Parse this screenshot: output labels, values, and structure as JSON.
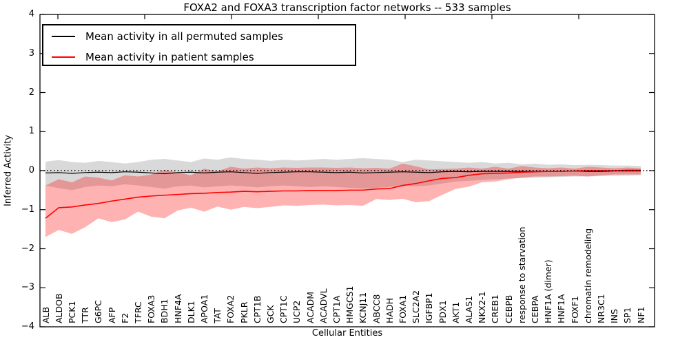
{
  "chart_data": {
    "type": "line",
    "title": "FOXA2 and FOXA3 transcription factor networks -- 533 samples",
    "xlabel": "Cellular Entities",
    "ylabel": "Inferred Activity",
    "ylim": [
      -4,
      4
    ],
    "ytick_values": [
      4,
      3,
      2,
      1,
      0,
      -1,
      -2,
      -3,
      -4
    ],
    "ytick_labels": [
      "4",
      "3",
      "2",
      "1",
      "0",
      "−1",
      "−2",
      "−3",
      "−4"
    ],
    "grid": false,
    "zero_reference_line": "dotted black at y=0",
    "legend_position": "upper left",
    "categories": [
      "ALB",
      "ALDOB",
      "PCK1",
      "TTR",
      "G6PC",
      "AFP",
      "F2",
      "TFRC",
      "FOXA3",
      "BDH1",
      "HNF4A",
      "DLK1",
      "APOA1",
      "TAT",
      "FOXA2",
      "PKLR",
      "CPT1B",
      "GCK",
      "CPT1C",
      "UCP2",
      "ACADM",
      "ACADVL",
      "CPT1A",
      "HMGCS1",
      "KCNJ11",
      "ABCC8",
      "HADH",
      "FOXA1",
      "SLC2A2",
      "IGFBP1",
      "PDX1",
      "AKT1",
      "ALAS1",
      "NKX2-1",
      "CREB1",
      "CEBPB",
      "response to starvation",
      "CEBPA",
      "HNF1A (dimer)",
      "HNF1A",
      "FOXF1",
      "chromatin remodeling",
      "NR3C1",
      "INS",
      "SP1",
      "NF1"
    ],
    "series": [
      {
        "name": "Mean activity in all permuted samples",
        "color": "#000000",
        "band_color": "rgba(0,0,0,0.15)",
        "values": [
          -0.06,
          -0.05,
          -0.07,
          -0.05,
          -0.04,
          -0.05,
          -0.03,
          -0.04,
          -0.06,
          -0.08,
          -0.05,
          -0.04,
          -0.06,
          -0.04,
          -0.03,
          -0.05,
          -0.07,
          -0.05,
          -0.04,
          -0.03,
          -0.03,
          -0.04,
          -0.05,
          -0.04,
          -0.06,
          -0.05,
          -0.04,
          -0.03,
          -0.04,
          -0.05,
          -0.03,
          -0.02,
          -0.03,
          -0.02,
          -0.02,
          -0.02,
          -0.02,
          -0.02,
          -0.02,
          -0.02,
          -0.01,
          -0.02,
          -0.02,
          -0.01,
          -0.01,
          -0.01
        ],
        "band_upper": [
          0.23,
          0.27,
          0.22,
          0.2,
          0.25,
          0.22,
          0.18,
          0.22,
          0.28,
          0.3,
          0.26,
          0.22,
          0.31,
          0.28,
          0.34,
          0.3,
          0.28,
          0.25,
          0.28,
          0.26,
          0.28,
          0.3,
          0.28,
          0.3,
          0.32,
          0.3,
          0.28,
          0.22,
          0.28,
          0.26,
          0.24,
          0.22,
          0.2,
          0.22,
          0.18,
          0.2,
          0.16,
          0.18,
          0.15,
          0.16,
          0.14,
          0.15,
          0.14,
          0.13,
          0.13,
          0.12
        ],
        "band_lower": [
          -0.38,
          -0.45,
          -0.5,
          -0.42,
          -0.38,
          -0.4,
          -0.35,
          -0.38,
          -0.42,
          -0.46,
          -0.4,
          -0.38,
          -0.43,
          -0.4,
          -0.38,
          -0.4,
          -0.43,
          -0.4,
          -0.38,
          -0.4,
          -0.42,
          -0.4,
          -0.42,
          -0.44,
          -0.46,
          -0.44,
          -0.42,
          -0.38,
          -0.4,
          -0.38,
          -0.33,
          -0.28,
          -0.26,
          -0.24,
          -0.22,
          -0.2,
          -0.19,
          -0.18,
          -0.17,
          -0.16,
          -0.15,
          -0.15,
          -0.14,
          -0.13,
          -0.13,
          -0.12
        ]
      },
      {
        "name": "Mean activity in patient samples",
        "color": "#ff0000",
        "band_color": "rgba(255,0,0,0.3)",
        "values": [
          -1.22,
          -0.95,
          -0.93,
          -0.88,
          -0.84,
          -0.78,
          -0.73,
          -0.68,
          -0.65,
          -0.63,
          -0.61,
          -0.59,
          -0.58,
          -0.56,
          -0.55,
          -0.53,
          -0.54,
          -0.53,
          -0.52,
          -0.52,
          -0.51,
          -0.51,
          -0.51,
          -0.5,
          -0.5,
          -0.47,
          -0.46,
          -0.38,
          -0.33,
          -0.26,
          -0.2,
          -0.18,
          -0.12,
          -0.08,
          -0.07,
          -0.06,
          -0.04,
          -0.03,
          -0.02,
          -0.02,
          -0.01,
          0.0,
          0.0,
          0.0,
          0.01,
          0.01
        ],
        "band_upper": [
          -0.38,
          -0.22,
          -0.3,
          -0.15,
          -0.18,
          -0.25,
          -0.12,
          -0.15,
          -0.1,
          0.02,
          -0.05,
          -0.12,
          0.05,
          -0.02,
          0.1,
          0.05,
          0.08,
          0.06,
          0.08,
          0.07,
          0.08,
          0.08,
          0.07,
          0.08,
          0.06,
          0.07,
          0.05,
          0.18,
          0.11,
          0.03,
          0.04,
          0.05,
          0.08,
          0.05,
          0.1,
          0.05,
          0.12,
          0.08,
          0.06,
          0.08,
          0.05,
          0.1,
          0.08,
          0.06,
          0.08,
          0.06
        ],
        "band_lower": [
          -1.7,
          -1.52,
          -1.62,
          -1.45,
          -1.22,
          -1.32,
          -1.25,
          -1.05,
          -1.18,
          -1.22,
          -1.02,
          -0.95,
          -1.05,
          -0.92,
          -1.0,
          -0.93,
          -0.96,
          -0.93,
          -0.89,
          -0.9,
          -0.88,
          -0.87,
          -0.89,
          -0.88,
          -0.9,
          -0.73,
          -0.75,
          -0.72,
          -0.81,
          -0.78,
          -0.62,
          -0.47,
          -0.41,
          -0.3,
          -0.28,
          -0.22,
          -0.18,
          -0.15,
          -0.15,
          -0.14,
          -0.13,
          -0.15,
          -0.12,
          -0.1,
          -0.1,
          -0.1
        ]
      }
    ]
  }
}
